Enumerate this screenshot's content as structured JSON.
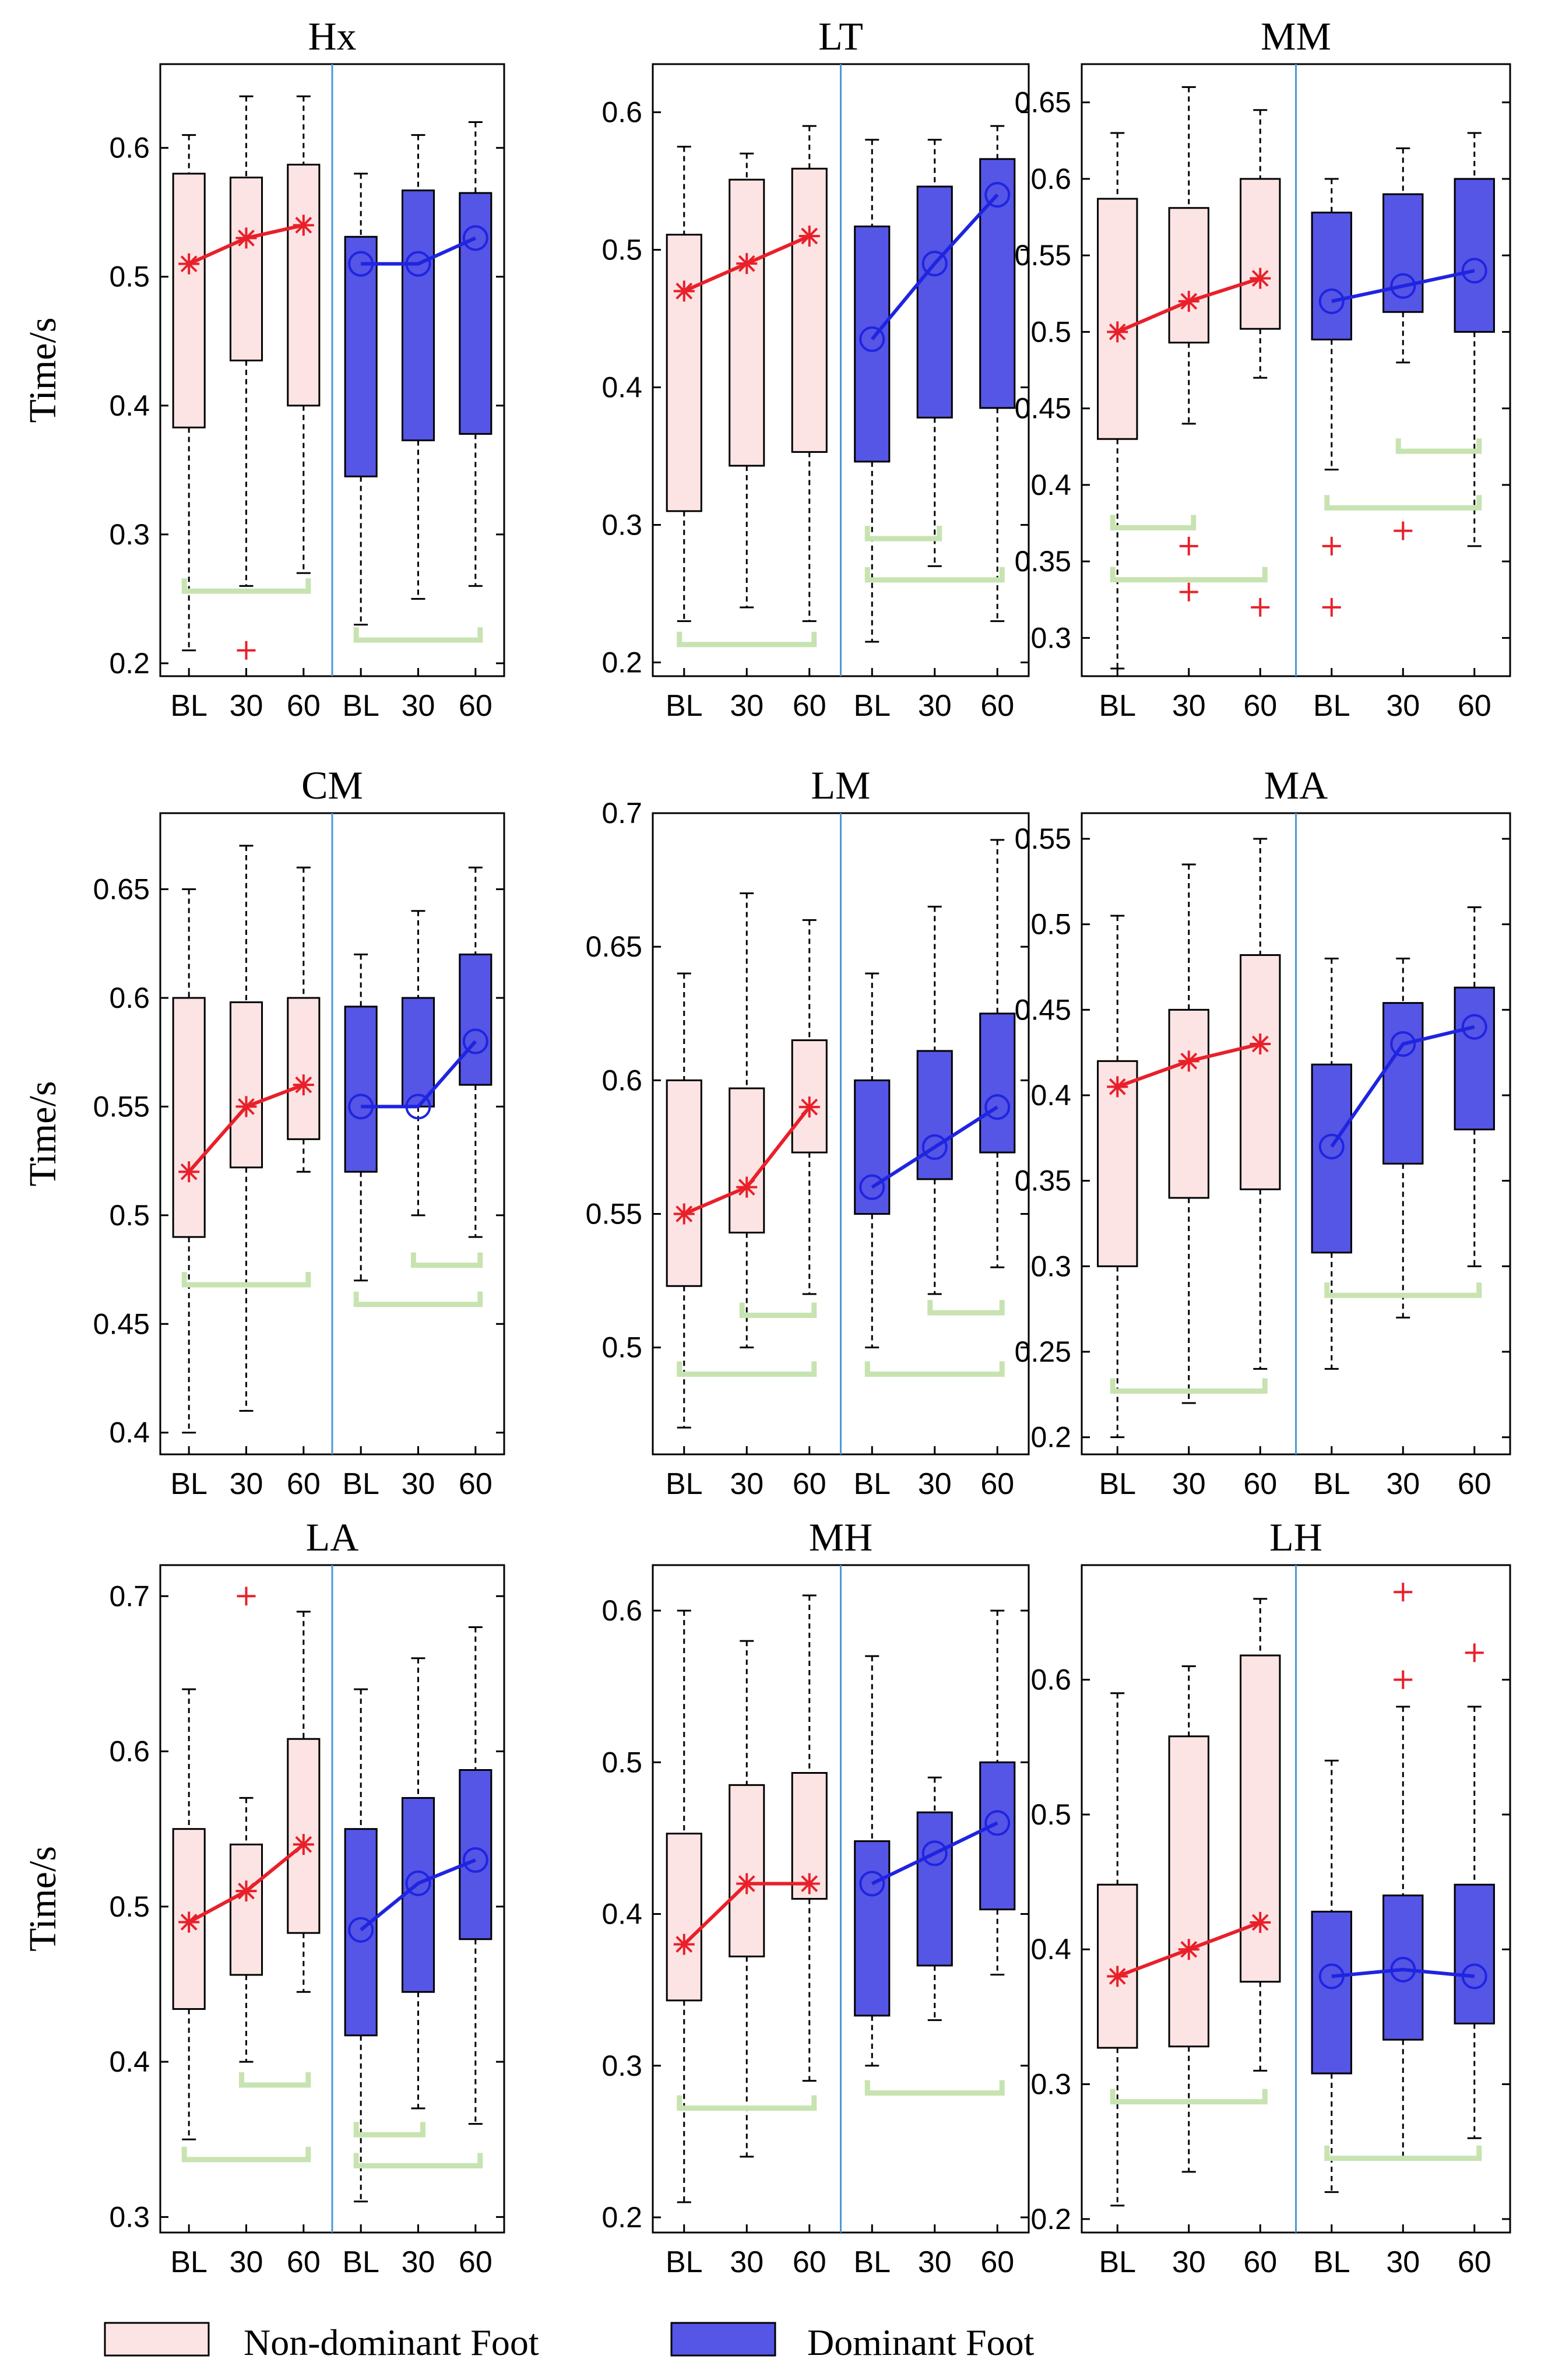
{
  "figure_layout": "3x3 grid of box plots",
  "legend": {
    "nondominant": {
      "label": "Non-dominant Foot",
      "fill": "#fde4e4",
      "line": "#e8202a"
    },
    "dominant": {
      "label": "Dominant Foot",
      "fill": "#5555e6",
      "line": "#1f24e0"
    }
  },
  "colors": {
    "significance_bracket": "#c7e3b1",
    "divider": "#4a9ad8",
    "outlier": "#e8202a",
    "whisker": "#000000"
  },
  "chart_data": [
    {
      "type": "box",
      "title": "Hx",
      "ylabel": "Time/s",
      "ylim": [
        0.19,
        0.665
      ],
      "yticks": [
        0.2,
        0.3,
        0.4,
        0.5,
        0.6
      ],
      "tick_labels": [
        "0.2",
        "0.3",
        "0.4",
        "0.5",
        "0.6"
      ],
      "categories": [
        "BL",
        "30",
        "60",
        "BL",
        "30",
        "60"
      ],
      "series": [
        {
          "name": "Non-dominant Foot",
          "medians": [
            0.51,
            0.53,
            0.54
          ],
          "boxes": [
            {
              "low": 0.21,
              "q1": 0.383,
              "q3": 0.58,
              "high": 0.61
            },
            {
              "low": 0.26,
              "q1": 0.435,
              "q3": 0.577,
              "high": 0.64
            },
            {
              "low": 0.27,
              "q1": 0.4,
              "q3": 0.587,
              "high": 0.64
            }
          ],
          "outliers": [
            [],
            [
              0.21
            ],
            []
          ]
        },
        {
          "name": "Dominant Foot",
          "medians": [
            0.51,
            0.51,
            0.53
          ],
          "boxes": [
            {
              "low": 0.23,
              "q1": 0.345,
              "q3": 0.531,
              "high": 0.58
            },
            {
              "low": 0.25,
              "q1": 0.373,
              "q3": 0.567,
              "high": 0.61
            },
            {
              "low": 0.26,
              "q1": 0.378,
              "q3": 0.565,
              "high": 0.62
            }
          ],
          "outliers": [
            [],
            [],
            []
          ]
        }
      ],
      "brackets": [
        {
          "from": 0,
          "to": 2,
          "y": 0.256
        },
        {
          "from": 3,
          "to": 5,
          "y": 0.218
        }
      ]
    },
    {
      "type": "box",
      "title": "LT",
      "ylabel": "",
      "ylim": [
        0.19,
        0.635
      ],
      "yticks": [
        0.2,
        0.3,
        0.4,
        0.5,
        0.6
      ],
      "tick_labels": [
        "0.2",
        "0.3",
        "0.4",
        "0.5",
        "0.6"
      ],
      "categories": [
        "BL",
        "30",
        "60",
        "BL",
        "30",
        "60"
      ],
      "series": [
        {
          "name": "Non-dominant Foot",
          "medians": [
            0.47,
            0.49,
            0.51
          ],
          "boxes": [
            {
              "low": 0.23,
              "q1": 0.31,
              "q3": 0.511,
              "high": 0.575
            },
            {
              "low": 0.24,
              "q1": 0.343,
              "q3": 0.551,
              "high": 0.57
            },
            {
              "low": 0.23,
              "q1": 0.353,
              "q3": 0.559,
              "high": 0.59
            }
          ],
          "outliers": [
            [],
            [],
            []
          ]
        },
        {
          "name": "Dominant Foot",
          "medians": [
            0.435,
            0.49,
            0.54
          ],
          "boxes": [
            {
              "low": 0.215,
              "q1": 0.346,
              "q3": 0.517,
              "high": 0.58
            },
            {
              "low": 0.27,
              "q1": 0.378,
              "q3": 0.546,
              "high": 0.58
            },
            {
              "low": 0.23,
              "q1": 0.385,
              "q3": 0.566,
              "high": 0.59
            }
          ],
          "outliers": [
            [],
            [],
            []
          ]
        }
      ],
      "brackets": [
        {
          "from": 0,
          "to": 2,
          "y": 0.213
        },
        {
          "from": 3,
          "to": 4,
          "y": 0.29
        },
        {
          "from": 3,
          "to": 5,
          "y": 0.26
        }
      ]
    },
    {
      "type": "box",
      "title": "MM",
      "ylabel": "",
      "ylim": [
        0.275,
        0.675
      ],
      "yticks": [
        0.3,
        0.35,
        0.4,
        0.45,
        0.5,
        0.55,
        0.6,
        0.65
      ],
      "tick_labels": [
        "0.3",
        "0.35",
        "0.4",
        "0.45",
        "0.5",
        "0.55",
        "0.6",
        "0.65"
      ],
      "categories": [
        "BL",
        "30",
        "60",
        "BL",
        "30",
        "60"
      ],
      "series": [
        {
          "name": "Non-dominant Foot",
          "medians": [
            0.5,
            0.52,
            0.535
          ],
          "boxes": [
            {
              "low": 0.28,
              "q1": 0.43,
              "q3": 0.587,
              "high": 0.63
            },
            {
              "low": 0.44,
              "q1": 0.493,
              "q3": 0.581,
              "high": 0.66
            },
            {
              "low": 0.47,
              "q1": 0.502,
              "q3": 0.6,
              "high": 0.645
            }
          ],
          "outliers": [
            [],
            [
              0.36,
              0.33
            ],
            [
              0.32
            ]
          ]
        },
        {
          "name": "Dominant Foot",
          "medians": [
            0.52,
            0.53,
            0.54
          ],
          "boxes": [
            {
              "low": 0.41,
              "q1": 0.495,
              "q3": 0.578,
              "high": 0.6
            },
            {
              "low": 0.48,
              "q1": 0.513,
              "q3": 0.59,
              "high": 0.62
            },
            {
              "low": 0.36,
              "q1": 0.5,
              "q3": 0.6,
              "high": 0.63
            }
          ],
          "outliers": [
            [
              0.36,
              0.32
            ],
            [
              0.37
            ],
            []
          ]
        }
      ],
      "brackets": [
        {
          "from": 0,
          "to": 1,
          "y": 0.372
        },
        {
          "from": 0,
          "to": 2,
          "y": 0.338
        },
        {
          "from": 4,
          "to": 5,
          "y": 0.422
        },
        {
          "from": 3,
          "to": 5,
          "y": 0.385
        }
      ]
    },
    {
      "type": "box",
      "title": "CM",
      "ylabel": "Time/s",
      "ylim": [
        0.39,
        0.685
      ],
      "yticks": [
        0.4,
        0.45,
        0.5,
        0.55,
        0.6,
        0.65
      ],
      "tick_labels": [
        "0.4",
        "0.45",
        "0.5",
        "0.55",
        "0.6",
        "0.65"
      ],
      "categories": [
        "BL",
        "30",
        "60",
        "BL",
        "30",
        "60"
      ],
      "series": [
        {
          "name": "Non-dominant Foot",
          "medians": [
            0.52,
            0.55,
            0.56
          ],
          "boxes": [
            {
              "low": 0.4,
              "q1": 0.49,
              "q3": 0.6,
              "high": 0.65
            },
            {
              "low": 0.41,
              "q1": 0.522,
              "q3": 0.598,
              "high": 0.67
            },
            {
              "low": 0.52,
              "q1": 0.535,
              "q3": 0.6,
              "high": 0.66
            }
          ],
          "outliers": [
            [],
            [],
            []
          ]
        },
        {
          "name": "Dominant Foot",
          "medians": [
            0.55,
            0.55,
            0.58
          ],
          "boxes": [
            {
              "low": 0.47,
              "q1": 0.52,
              "q3": 0.596,
              "high": 0.62
            },
            {
              "low": 0.5,
              "q1": 0.55,
              "q3": 0.6,
              "high": 0.64
            },
            {
              "low": 0.49,
              "q1": 0.56,
              "q3": 0.62,
              "high": 0.66
            }
          ],
          "outliers": [
            [],
            [],
            []
          ]
        }
      ],
      "brackets": [
        {
          "from": 0,
          "to": 2,
          "y": 0.468
        },
        {
          "from": 4,
          "to": 5,
          "y": 0.477
        },
        {
          "from": 3,
          "to": 5,
          "y": 0.459
        }
      ]
    },
    {
      "type": "box",
      "title": "LM",
      "ylabel": "",
      "ylim": [
        0.46,
        0.7
      ],
      "yticks": [
        0.5,
        0.55,
        0.6,
        0.65,
        0.7
      ],
      "tick_labels": [
        "0.5",
        "0.55",
        "0.6",
        "0.65",
        "0.7"
      ],
      "categories": [
        "BL",
        "30",
        "60",
        "BL",
        "30",
        "60"
      ],
      "series": [
        {
          "name": "Non-dominant Foot",
          "medians": [
            0.55,
            0.56,
            0.59
          ],
          "boxes": [
            {
              "low": 0.47,
              "q1": 0.523,
              "q3": 0.6,
              "high": 0.64
            },
            {
              "low": 0.5,
              "q1": 0.543,
              "q3": 0.597,
              "high": 0.67
            },
            {
              "low": 0.52,
              "q1": 0.573,
              "q3": 0.615,
              "high": 0.66
            }
          ],
          "outliers": [
            [],
            [],
            []
          ]
        },
        {
          "name": "Dominant Foot",
          "medians": [
            0.56,
            0.575,
            0.59
          ],
          "boxes": [
            {
              "low": 0.5,
              "q1": 0.55,
              "q3": 0.6,
              "high": 0.64
            },
            {
              "low": 0.52,
              "q1": 0.563,
              "q3": 0.611,
              "high": 0.665
            },
            {
              "low": 0.53,
              "q1": 0.573,
              "q3": 0.625,
              "high": 0.69
            }
          ],
          "outliers": [
            [],
            [],
            []
          ]
        }
      ],
      "brackets": [
        {
          "from": 1,
          "to": 2,
          "y": 0.512
        },
        {
          "from": 0,
          "to": 2,
          "y": 0.49
        },
        {
          "from": 4,
          "to": 5,
          "y": 0.513
        },
        {
          "from": 3,
          "to": 5,
          "y": 0.49
        }
      ]
    },
    {
      "type": "box",
      "title": "MA",
      "ylabel": "",
      "ylim": [
        0.19,
        0.565
      ],
      "yticks": [
        0.2,
        0.25,
        0.3,
        0.35,
        0.4,
        0.45,
        0.5,
        0.55
      ],
      "tick_labels": [
        "0.2",
        "0.25",
        "0.3",
        "0.35",
        "0.4",
        "0.45",
        "0.5",
        "0.55"
      ],
      "categories": [
        "BL",
        "30",
        "60",
        "BL",
        "30",
        "60"
      ],
      "series": [
        {
          "name": "Non-dominant Foot",
          "medians": [
            0.405,
            0.42,
            0.43
          ],
          "boxes": [
            {
              "low": 0.2,
              "q1": 0.3,
              "q3": 0.42,
              "high": 0.505
            },
            {
              "low": 0.22,
              "q1": 0.34,
              "q3": 0.45,
              "high": 0.535
            },
            {
              "low": 0.24,
              "q1": 0.345,
              "q3": 0.482,
              "high": 0.55
            }
          ],
          "outliers": [
            [],
            [],
            []
          ]
        },
        {
          "name": "Dominant Foot",
          "medians": [
            0.37,
            0.43,
            0.44
          ],
          "boxes": [
            {
              "low": 0.24,
              "q1": 0.308,
              "q3": 0.418,
              "high": 0.48
            },
            {
              "low": 0.27,
              "q1": 0.36,
              "q3": 0.454,
              "high": 0.48
            },
            {
              "low": 0.3,
              "q1": 0.38,
              "q3": 0.463,
              "high": 0.51
            }
          ],
          "outliers": [
            [],
            [],
            []
          ]
        }
      ],
      "brackets": [
        {
          "from": 0,
          "to": 2,
          "y": 0.227
        },
        {
          "from": 3,
          "to": 5,
          "y": 0.283
        }
      ]
    },
    {
      "type": "box",
      "title": "LA",
      "ylabel": "Time/s",
      "ylim": [
        0.29,
        0.72
      ],
      "yticks": [
        0.3,
        0.4,
        0.5,
        0.6,
        0.7
      ],
      "tick_labels": [
        "0.3",
        "0.4",
        "0.5",
        "0.6",
        "0.7"
      ],
      "categories": [
        "BL",
        "30",
        "60",
        "BL",
        "30",
        "60"
      ],
      "series": [
        {
          "name": "Non-dominant Foot",
          "medians": [
            0.49,
            0.51,
            0.54
          ],
          "boxes": [
            {
              "low": 0.35,
              "q1": 0.434,
              "q3": 0.55,
              "high": 0.64
            },
            {
              "low": 0.4,
              "q1": 0.456,
              "q3": 0.54,
              "high": 0.57
            },
            {
              "low": 0.445,
              "q1": 0.483,
              "q3": 0.608,
              "high": 0.69
            }
          ],
          "outliers": [
            [],
            [
              0.7
            ],
            []
          ]
        },
        {
          "name": "Dominant Foot",
          "medians": [
            0.485,
            0.515,
            0.53
          ],
          "boxes": [
            {
              "low": 0.31,
              "q1": 0.417,
              "q3": 0.55,
              "high": 0.64
            },
            {
              "low": 0.37,
              "q1": 0.445,
              "q3": 0.57,
              "high": 0.66
            },
            {
              "low": 0.36,
              "q1": 0.479,
              "q3": 0.588,
              "high": 0.68
            }
          ],
          "outliers": [
            [],
            [],
            []
          ]
        }
      ],
      "brackets": [
        {
          "from": 1,
          "to": 2,
          "y": 0.385
        },
        {
          "from": 0,
          "to": 2,
          "y": 0.337
        },
        {
          "from": 3,
          "to": 4,
          "y": 0.353
        },
        {
          "from": 3,
          "to": 5,
          "y": 0.333
        }
      ]
    },
    {
      "type": "box",
      "title": "MH",
      "ylabel": "",
      "ylim": [
        0.19,
        0.63
      ],
      "yticks": [
        0.2,
        0.3,
        0.4,
        0.5,
        0.6
      ],
      "tick_labels": [
        "0.2",
        "0.3",
        "0.4",
        "0.5",
        "0.6"
      ],
      "categories": [
        "BL",
        "30",
        "60",
        "BL",
        "30",
        "60"
      ],
      "series": [
        {
          "name": "Non-dominant Foot",
          "medians": [
            0.38,
            0.42,
            0.42
          ],
          "boxes": [
            {
              "low": 0.21,
              "q1": 0.343,
              "q3": 0.453,
              "high": 0.6
            },
            {
              "low": 0.24,
              "q1": 0.372,
              "q3": 0.485,
              "high": 0.58
            },
            {
              "low": 0.29,
              "q1": 0.41,
              "q3": 0.493,
              "high": 0.61
            }
          ],
          "outliers": [
            [],
            [],
            []
          ]
        },
        {
          "name": "Dominant Foot",
          "medians": [
            0.42,
            0.44,
            0.46
          ],
          "boxes": [
            {
              "low": 0.3,
              "q1": 0.333,
              "q3": 0.448,
              "high": 0.57
            },
            {
              "low": 0.33,
              "q1": 0.366,
              "q3": 0.467,
              "high": 0.49
            },
            {
              "low": 0.36,
              "q1": 0.403,
              "q3": 0.5,
              "high": 0.6
            }
          ],
          "outliers": [
            [],
            [],
            []
          ]
        }
      ],
      "brackets": [
        {
          "from": 0,
          "to": 2,
          "y": 0.272
        },
        {
          "from": 3,
          "to": 5,
          "y": 0.282
        }
      ]
    },
    {
      "type": "box",
      "title": "LH",
      "ylabel": "",
      "ylim": [
        0.19,
        0.685
      ],
      "yticks": [
        0.2,
        0.3,
        0.4,
        0.5,
        0.6
      ],
      "tick_labels": [
        "0.2",
        "0.3",
        "0.4",
        "0.5",
        "0.6"
      ],
      "categories": [
        "BL",
        "30",
        "60",
        "BL",
        "30",
        "60"
      ],
      "series": [
        {
          "name": "Non-dominant Foot",
          "medians": [
            0.38,
            0.4,
            0.42
          ],
          "boxes": [
            {
              "low": 0.21,
              "q1": 0.327,
              "q3": 0.448,
              "high": 0.59
            },
            {
              "low": 0.235,
              "q1": 0.328,
              "q3": 0.558,
              "high": 0.61
            },
            {
              "low": 0.31,
              "q1": 0.376,
              "q3": 0.618,
              "high": 0.66
            }
          ],
          "outliers": [
            [],
            [],
            []
          ]
        },
        {
          "name": "Dominant Foot",
          "medians": [
            0.38,
            0.385,
            0.38
          ],
          "boxes": [
            {
              "low": 0.22,
              "q1": 0.308,
              "q3": 0.428,
              "high": 0.54
            },
            {
              "low": 0.245,
              "q1": 0.333,
              "q3": 0.44,
              "high": 0.58
            },
            {
              "low": 0.26,
              "q1": 0.345,
              "q3": 0.448,
              "high": 0.58
            }
          ],
          "outliers": [
            [],
            [
              0.665,
              0.6
            ],
            [
              0.62
            ]
          ]
        }
      ],
      "brackets": [
        {
          "from": 0,
          "to": 2,
          "y": 0.287
        },
        {
          "from": 3,
          "to": 5,
          "y": 0.245
        }
      ]
    }
  ]
}
